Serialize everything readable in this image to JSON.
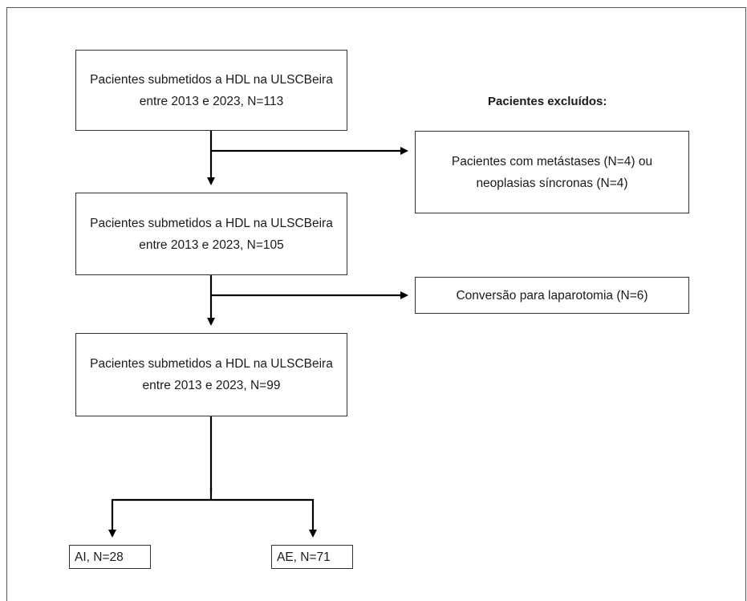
{
  "diagram": {
    "boxes": {
      "step1": "Pacientes submetidos a HDL na ULSCBeira entre 2013 e 2023, N=113",
      "step2": "Pacientes submetidos a HDL na ULSCBeira entre 2013 e 2023, N=105",
      "step3": "Pacientes submetidos a HDL na ULSCBeira entre 2013 e 2023, N=99",
      "excluded1": "Pacientes com metástases (N=4) ou neoplasias síncronas (N=4)",
      "excluded2": "Conversão para laparotomia (N=6)",
      "group_ai": "AI, N=28",
      "group_ae": "AE, N=71"
    },
    "excluded_heading": "Pacientes excluídos:"
  }
}
